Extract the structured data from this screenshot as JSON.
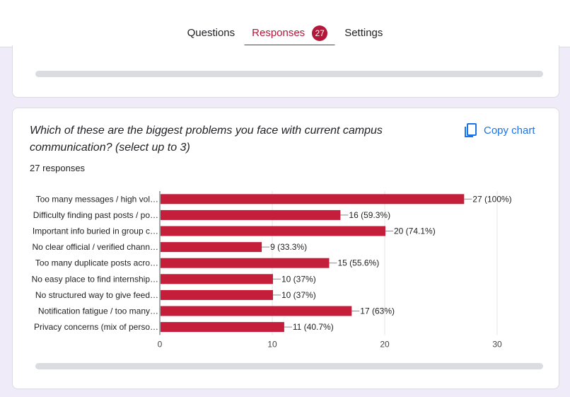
{
  "tabs": [
    {
      "label": "Questions"
    },
    {
      "label": "Responses",
      "badge": "27"
    },
    {
      "label": "Settings"
    }
  ],
  "question": {
    "title": "Which of these are the biggest problems you face with current campus communication? (select up to 3)",
    "response_count": "27 responses",
    "copy_label": "Copy chart",
    "copy_icon": "copy-icon"
  },
  "colors": {
    "accent": "#b3183a",
    "bar": "#c41e3a",
    "link": "#1a73e8"
  },
  "chart_data": {
    "type": "bar",
    "orientation": "horizontal",
    "categories": [
      "Too many messages / high vol…",
      "Difficulty finding past posts / po…",
      "Important info buried in group c…",
      "No clear official / verified chann…",
      "Too many duplicate posts acro…",
      "No easy place to find internship…",
      "No structured way to give feed…",
      "Notification fatigue / too many…",
      "Privacy concerns (mix of perso…"
    ],
    "values": [
      27,
      16,
      20,
      9,
      15,
      10,
      10,
      17,
      11
    ],
    "data_labels": [
      "27 (100%)",
      "16 (59.3%)",
      "20 (74.1%)",
      "9 (33.3%)",
      "15 (55.6%)",
      "10 (37%)",
      "10 (37%)",
      "17 (63%)",
      "11 (40.7%)"
    ],
    "xlim": [
      0,
      30
    ],
    "xticks": [
      "0",
      "10",
      "20",
      "30"
    ],
    "grid": true
  }
}
